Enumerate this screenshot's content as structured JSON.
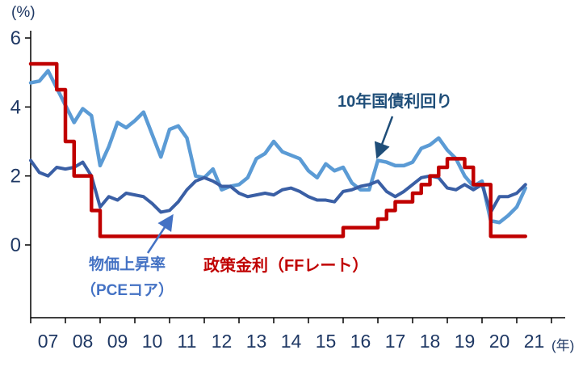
{
  "chart_data": {
    "type": "line",
    "title": "",
    "ylabel_unit": "(%)",
    "xlabel_unit": "(年)",
    "ylim": [
      0,
      6
    ],
    "grid": false,
    "legend_position": "inline-annotations",
    "y_ticks": [
      0,
      2,
      4,
      6
    ],
    "x_tick_labels": [
      "07",
      "08",
      "09",
      "10",
      "11",
      "12",
      "13",
      "14",
      "15",
      "16",
      "17",
      "18",
      "19",
      "20",
      "21"
    ],
    "x": [
      2007.0,
      2007.25,
      2007.5,
      2007.75,
      2008.0,
      2008.25,
      2008.5,
      2008.75,
      2009.0,
      2009.25,
      2009.5,
      2009.75,
      2010.0,
      2010.25,
      2010.5,
      2010.75,
      2011.0,
      2011.25,
      2011.5,
      2011.75,
      2012.0,
      2012.25,
      2012.5,
      2012.75,
      2013.0,
      2013.25,
      2013.5,
      2013.75,
      2014.0,
      2014.25,
      2014.5,
      2014.75,
      2015.0,
      2015.25,
      2015.5,
      2015.75,
      2016.0,
      2016.25,
      2016.5,
      2016.75,
      2017.0,
      2017.25,
      2017.5,
      2017.75,
      2018.0,
      2018.25,
      2018.5,
      2018.75,
      2019.0,
      2019.25,
      2019.5,
      2019.75,
      2020.0,
      2020.25,
      2020.5,
      2020.75,
      2021.0,
      2021.25
    ],
    "series": [
      {
        "name": "10年国債利回り",
        "color": "#5b9bd5",
        "width": 4.5,
        "step": false,
        "values": [
          4.7,
          4.75,
          5.05,
          4.55,
          4.05,
          3.55,
          3.95,
          3.75,
          2.3,
          2.85,
          3.55,
          3.4,
          3.6,
          3.85,
          3.2,
          2.55,
          3.35,
          3.45,
          3.1,
          2.0,
          1.95,
          2.2,
          1.6,
          1.7,
          1.75,
          1.95,
          2.5,
          2.65,
          3.0,
          2.7,
          2.6,
          2.5,
          2.15,
          1.95,
          2.35,
          2.15,
          2.25,
          1.8,
          1.6,
          1.6,
          2.45,
          2.4,
          2.3,
          2.3,
          2.4,
          2.8,
          2.9,
          3.1,
          2.75,
          2.5,
          2.0,
          1.7,
          1.85,
          0.7,
          0.65,
          0.85,
          1.1,
          1.65
        ]
      },
      {
        "name": "物価上昇率（PCEコア）",
        "color": "#3a5fa5",
        "width": 4,
        "step": false,
        "values": [
          2.45,
          2.1,
          2.0,
          2.25,
          2.2,
          2.25,
          2.4,
          2.0,
          1.1,
          1.4,
          1.3,
          1.5,
          1.45,
          1.4,
          1.2,
          0.95,
          1.0,
          1.25,
          1.6,
          1.85,
          1.95,
          1.85,
          1.7,
          1.7,
          1.5,
          1.4,
          1.45,
          1.5,
          1.45,
          1.6,
          1.65,
          1.55,
          1.4,
          1.3,
          1.3,
          1.25,
          1.55,
          1.6,
          1.7,
          1.75,
          1.85,
          1.55,
          1.4,
          1.55,
          1.75,
          1.95,
          2.0,
          1.95,
          1.65,
          1.6,
          1.75,
          1.6,
          1.75,
          0.95,
          1.4,
          1.4,
          1.5,
          1.75
        ]
      },
      {
        "name": "政策金利（FFレート）",
        "color": "#c00000",
        "width": 4.5,
        "step": true,
        "values": [
          5.25,
          5.25,
          5.25,
          4.5,
          3.0,
          2.0,
          2.0,
          1.0,
          0.25,
          0.25,
          0.25,
          0.25,
          0.25,
          0.25,
          0.25,
          0.25,
          0.25,
          0.25,
          0.25,
          0.25,
          0.25,
          0.25,
          0.25,
          0.25,
          0.25,
          0.25,
          0.25,
          0.25,
          0.25,
          0.25,
          0.25,
          0.25,
          0.25,
          0.25,
          0.25,
          0.25,
          0.5,
          0.5,
          0.5,
          0.5,
          0.75,
          1.0,
          1.25,
          1.25,
          1.5,
          1.75,
          2.0,
          2.25,
          2.5,
          2.5,
          2.25,
          1.75,
          1.75,
          0.25,
          0.25,
          0.25,
          0.25,
          0.25
        ]
      }
    ],
    "annotations": {
      "bond_label": "10年国債利回り",
      "policy_label": "政策金利（FFレート）",
      "inflation_label_line1": "物価上昇率",
      "inflation_label_line2": "（PCEコア）"
    },
    "colors": {
      "axis_line": "#000000",
      "axis_text": "#1f3864",
      "bond": "#1f4e79",
      "inflation": "#4472c4",
      "policy": "#c00000"
    }
  }
}
